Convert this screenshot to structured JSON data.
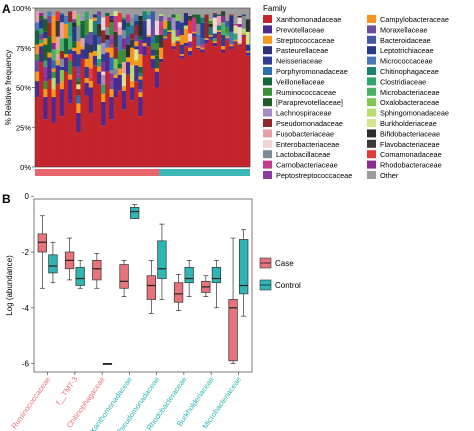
{
  "panel_a": {
    "letter": "A"
  },
  "panel_b": {
    "letter": "B"
  },
  "chart_data": [
    {
      "type": "bar",
      "stacked": true,
      "panel": "A",
      "ylabel": "% Relative frequency",
      "yticks": [
        "0%",
        "25%",
        "50%",
        "75%",
        "100%"
      ],
      "ylim": [
        0,
        100
      ],
      "sample_count": 52,
      "group_bar": [
        {
          "label": "Case",
          "color": "#e8666b",
          "samples": 30
        },
        {
          "label": "Control",
          "color": "#3bb5b6",
          "samples": 22
        }
      ],
      "legend_title": "Family",
      "legend": [
        {
          "name": "Xanthomonadaceae",
          "color": "#c4242b"
        },
        {
          "name": "Prevotellaceae",
          "color": "#4b2a91"
        },
        {
          "name": "Streptococcaceae",
          "color": "#f39a21"
        },
        {
          "name": "Pasteurellaceae",
          "color": "#2b2f7c"
        },
        {
          "name": "Neisseriaceae",
          "color": "#2d3f93"
        },
        {
          "name": "Porphyromonadaceae",
          "color": "#2e6fb0"
        },
        {
          "name": "Veillonellaceae",
          "color": "#12663a"
        },
        {
          "name": "Ruminococcaceae",
          "color": "#3e8f3a"
        },
        {
          "name": "[Paraprevotellaceae]",
          "color": "#1f5d2a"
        },
        {
          "name": "Lachnospiraceae",
          "color": "#a58bc4"
        },
        {
          "name": "Pseudomonadaceae",
          "color": "#8e2a2a"
        },
        {
          "name": "Fusobacteriaceae",
          "color": "#e7a0a4"
        },
        {
          "name": "Enterobacteriaceae",
          "color": "#f2d5d6"
        },
        {
          "name": "Lactobacillaceae",
          "color": "#7f8c98"
        },
        {
          "name": "Carnobacteriaceae",
          "color": "#c23b8a"
        },
        {
          "name": "Peptostreptococcaceae",
          "color": "#8b3aa0"
        },
        {
          "name": "Campylobacteraceae",
          "color": "#f7941d"
        },
        {
          "name": "Moraxellaceae",
          "color": "#6b4aa0"
        },
        {
          "name": "Bacteroidaceae",
          "color": "#4259a6"
        },
        {
          "name": "Leptotrichiaceae",
          "color": "#243b8a"
        },
        {
          "name": "Micrococcaceae",
          "color": "#4d78b8"
        },
        {
          "name": "Chitinophagaceae",
          "color": "#1e7f74"
        },
        {
          "name": "Clostridiaceae",
          "color": "#30a46c"
        },
        {
          "name": "Microbacteriaceae",
          "color": "#48b26a"
        },
        {
          "name": "Oxalobacteraceae",
          "color": "#7ec850"
        },
        {
          "name": "Sphingomonadaceae",
          "color": "#b8de6f"
        },
        {
          "name": "Burkholderiaceae",
          "color": "#d6e48c"
        },
        {
          "name": "Bifidobacteriaceae",
          "color": "#2d2d2d"
        },
        {
          "name": "Flavobacteriaceae",
          "color": "#3a3a3a"
        },
        {
          "name": "Comamonadaceae",
          "color": "#e03a3a"
        },
        {
          "name": "Rhodobacteraceae",
          "color": "#8a2e8e"
        },
        {
          "name": "Other",
          "color": "#9c9c9c"
        }
      ],
      "xanthomonadaceae_pct": [
        44,
        66,
        30,
        55,
        28,
        52,
        32,
        60,
        40,
        63,
        22,
        68,
        45,
        34,
        64,
        52,
        26,
        60,
        30,
        44,
        48,
        36,
        58,
        42,
        54,
        32,
        70,
        76,
        62,
        50,
        66,
        80,
        84,
        74,
        78,
        68,
        76,
        70,
        82,
        74,
        72,
        78,
        80,
        76,
        84,
        72,
        80,
        74,
        78,
        76,
        82,
        70
      ],
      "prevotellaceae_pct": [
        10,
        10,
        14,
        14,
        16,
        12,
        17,
        9,
        15,
        10,
        12,
        6,
        8,
        16,
        6,
        8,
        15,
        12,
        14,
        12,
        10,
        12,
        8,
        8,
        10,
        12,
        6,
        6,
        6,
        10,
        2,
        1,
        1,
        2,
        1,
        2,
        2,
        3,
        2,
        1,
        2,
        2,
        2,
        2,
        1,
        2,
        1,
        2,
        1,
        1,
        1,
        2
      ],
      "streptococcaceae_pct": [
        6,
        2,
        5,
        3,
        5,
        3,
        5,
        2,
        3,
        2,
        6,
        2,
        3,
        4,
        3,
        3,
        5,
        3,
        5,
        2,
        4,
        3,
        3,
        4,
        3,
        3,
        2,
        1,
        2,
        2,
        1,
        1,
        1,
        2,
        1,
        1,
        1,
        2,
        1,
        1,
        1,
        1,
        1,
        1,
        1,
        2,
        1,
        1,
        1,
        1,
        1,
        1
      ],
      "other_pct": [
        2,
        3,
        6,
        2,
        5,
        2,
        3,
        5,
        2,
        2,
        4,
        5,
        2,
        7,
        4,
        2,
        6,
        3,
        5,
        2,
        3,
        6,
        4,
        6,
        4,
        5,
        2,
        2,
        2,
        8,
        4,
        8,
        6,
        4,
        4,
        9,
        3,
        5,
        4,
        4,
        6,
        4,
        7,
        3,
        4,
        2,
        8,
        4,
        10,
        5,
        4,
        7
      ]
    },
    {
      "type": "box",
      "panel": "B",
      "ylabel": "Log (abundance)",
      "ylim": [
        -6.3,
        -0.1
      ],
      "yticks": [
        "0",
        "-2",
        "-4",
        "-6"
      ],
      "groups": [
        {
          "label": "Case",
          "color": "#e8737a"
        },
        {
          "label": "Control",
          "color": "#2fb5b5"
        }
      ],
      "categories": [
        {
          "name": "Ruminococcaceae",
          "color": "#e8737a"
        },
        {
          "name": "f__TM7-3",
          "color": "#e8737a"
        },
        {
          "name": "Chitinophagaceae",
          "color": "#e8737a"
        },
        {
          "name": "Xanthomonadaceae",
          "color": "#2fb5b5"
        },
        {
          "name": "Pseudomonadaceae",
          "color": "#2fb5b5"
        },
        {
          "name": "Rhodobacteraceae",
          "color": "#2fb5b5"
        },
        {
          "name": "Burkholderiaceae",
          "color": "#2fb5b5"
        },
        {
          "name": "Microbacteriaceae",
          "color": "#2fb5b5"
        }
      ],
      "boxes": [
        {
          "category": "Ruminococcaceae",
          "group": "Case",
          "whisker_low": -3.3,
          "q1": -2.0,
          "median": -1.65,
          "q3": -1.35,
          "whisker_high": -0.7
        },
        {
          "category": "Ruminococcaceae",
          "group": "Control",
          "whisker_low": -3.1,
          "q1": -2.75,
          "median": -2.5,
          "q3": -2.1,
          "whisker_high": -1.65
        },
        {
          "category": "f__TM7-3",
          "group": "Case",
          "whisker_low": -3.0,
          "q1": -2.6,
          "median": -2.3,
          "q3": -2.0,
          "whisker_high": -1.5
        },
        {
          "category": "f__TM7-3",
          "group": "Control",
          "whisker_low": -3.3,
          "q1": -3.2,
          "median": -2.95,
          "q3": -2.55,
          "whisker_high": -2.3
        },
        {
          "category": "Chitinophagaceae",
          "group": "Case",
          "whisker_low": -3.3,
          "q1": -3.0,
          "median": -2.6,
          "q3": -2.3,
          "whisker_high": -2.05
        },
        {
          "category": "Chitinophagaceae",
          "group": "Control",
          "whisker_low": -6.0,
          "q1": -6.0,
          "median": -6.0,
          "q3": -6.0,
          "whisker_high": -6.0
        },
        {
          "category": "Xanthomonadaceae",
          "group": "Case",
          "whisker_low": -3.6,
          "q1": -3.3,
          "median": -3.05,
          "q3": -2.45,
          "whisker_high": -2.3
        },
        {
          "category": "Xanthomonadaceae",
          "group": "Control",
          "whisker_low": -0.8,
          "q1": -0.8,
          "median": -0.55,
          "q3": -0.4,
          "whisker_high": -0.3
        },
        {
          "category": "Pseudomonadaceae",
          "group": "Case",
          "whisker_low": -4.2,
          "q1": -3.7,
          "median": -3.2,
          "q3": -2.85,
          "whisker_high": -2.3
        },
        {
          "category": "Pseudomonadaceae",
          "group": "Control",
          "whisker_low": -3.7,
          "q1": -2.95,
          "median": -2.6,
          "q3": -1.6,
          "whisker_high": -1.0
        },
        {
          "category": "Rhodobacteraceae",
          "group": "Case",
          "whisker_low": -4.1,
          "q1": -3.8,
          "median": -3.5,
          "q3": -3.1,
          "whisker_high": -2.8
        },
        {
          "category": "Rhodobacteraceae",
          "group": "Control",
          "whisker_low": -3.6,
          "q1": -3.1,
          "median": -2.95,
          "q3": -2.55,
          "whisker_high": -2.3
        },
        {
          "category": "Burkholderiaceae",
          "group": "Case",
          "whisker_low": -3.6,
          "q1": -3.45,
          "median": -3.25,
          "q3": -3.05,
          "whisker_high": -2.85
        },
        {
          "category": "Burkholderiaceae",
          "group": "Control",
          "whisker_low": -4.0,
          "q1": -3.1,
          "median": -2.95,
          "q3": -2.55,
          "whisker_high": -2.3
        },
        {
          "category": "Microbacteriaceae",
          "group": "Case",
          "whisker_low": -6.0,
          "q1": -5.9,
          "median": -4.0,
          "q3": -3.7,
          "whisker_high": -1.5
        },
        {
          "category": "Microbacteriaceae",
          "group": "Control",
          "whisker_low": -4.3,
          "q1": -3.5,
          "median": -3.2,
          "q3": -1.55,
          "whisker_high": -1.2
        }
      ]
    }
  ]
}
